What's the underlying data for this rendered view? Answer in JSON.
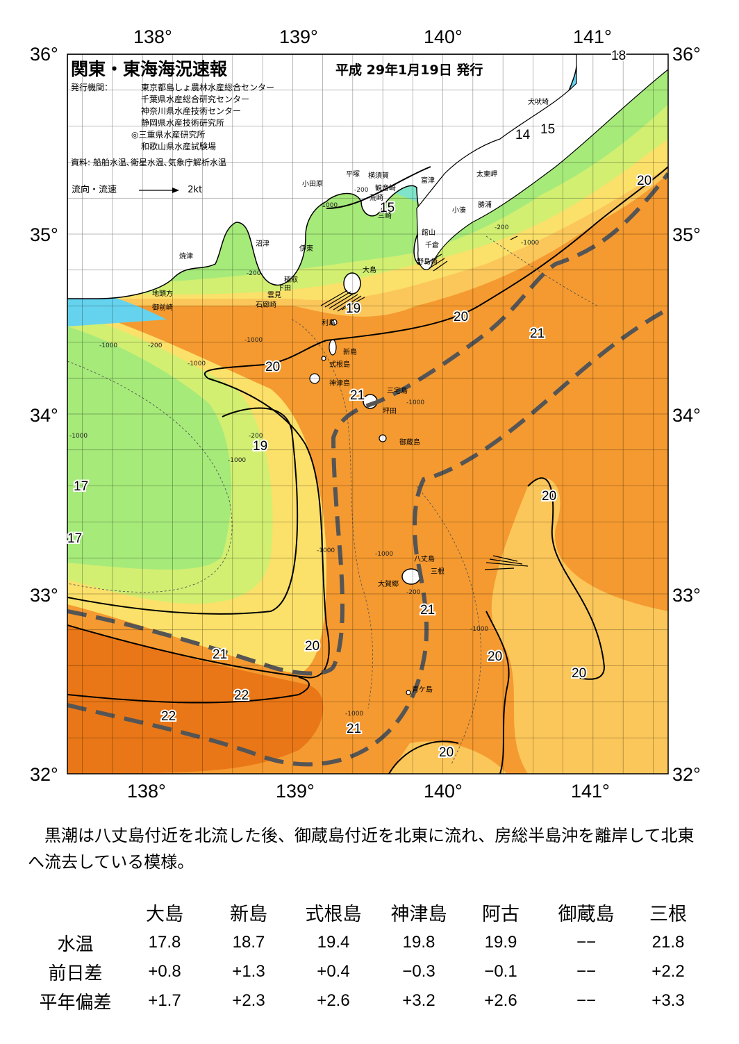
{
  "header": {
    "title": "関東・東海海況速報",
    "date": "平成 29年1月19日 発行",
    "issuer_label": "発行機関：",
    "issuers": [
      "東京都島しょ農林水産総合センター",
      "千葉県水産総合研究センター",
      "神奈川県水産技術センター",
      "静岡県水産技術研究所",
      "◎三重県水産研究所",
      "和歌山県水産試験場"
    ],
    "sources": "資料: 船舶水温､衛星水温､気象庁解析水温",
    "flow_legend": "流向・流速",
    "flow_unit": "2kt"
  },
  "axes": {
    "lon_labels": [
      "138°",
      "139°",
      "140°",
      "141°"
    ],
    "lat_labels": [
      "36°",
      "35°",
      "34°",
      "33°",
      "32°"
    ]
  },
  "isotherm_labels": [
    "18",
    "14",
    "15",
    "20",
    "15",
    "19",
    "20",
    "21",
    "20",
    "21",
    "19",
    "17",
    "17",
    "20",
    "21",
    "20",
    "21",
    "20",
    "20",
    "22",
    "22",
    "21",
    "20"
  ],
  "depth_labels": [
    "-200",
    "-1000",
    "-200",
    "-1000",
    "-200",
    "-1000",
    "-1000",
    "-200",
    "-1000",
    "-1000",
    "-200",
    "-1000",
    "-1000",
    "-1000",
    "-1000",
    "-1000",
    "-200",
    "-1000"
  ],
  "places": [
    "犬吠埼",
    "太東岬",
    "勝浦",
    "小湊",
    "富津",
    "横須賀",
    "観音崎",
    "平塚",
    "小田原",
    "荒崎",
    "三崎",
    "館山",
    "千倉",
    "野島崎",
    "沼津",
    "伊東",
    "焼津",
    "稲取",
    "下田",
    "雲見",
    "石廊崎",
    "地頭方",
    "御前崎",
    "大島",
    "利島",
    "新島",
    "式根島",
    "神津島",
    "三宅島",
    "坪田",
    "御蔵島",
    "八丈島",
    "三根",
    "大賀郷",
    "青ケ島"
  ],
  "colors": {
    "sea_14": "#66d3ee",
    "sea_15": "#7fe4c9",
    "sea_17": "#a6ea7a",
    "sea_18": "#d2ef72",
    "sea_19": "#fbe06a",
    "sea_20": "#fbc75a",
    "sea_21": "#f59a30",
    "sea_22": "#e97717",
    "land": "#ffffff",
    "kuroshio_axis": "#555555"
  },
  "summary": "黒潮は八丈島付近を北流した後、御蔵島付近を北東に流れ、房総半島沖を離岸して北東へ流去している模様。",
  "table": {
    "stations": [
      "大島",
      "新島",
      "式根島",
      "神津島",
      "阿古",
      "御蔵島",
      "三根"
    ],
    "rows": [
      {
        "label": "水温",
        "values": [
          "17.8",
          "18.7",
          "19.4",
          "19.8",
          "19.9",
          "−−",
          "21.8"
        ]
      },
      {
        "label": "前日差",
        "values": [
          "+0.8",
          "+1.3",
          "+0.4",
          "−0.3",
          "−0.1",
          "−−",
          "+2.2"
        ]
      },
      {
        "label": "平年偏差",
        "values": [
          "+1.7",
          "+2.3",
          "+2.6",
          "+3.2",
          "+2.6",
          "−−",
          "+3.3"
        ]
      }
    ]
  }
}
